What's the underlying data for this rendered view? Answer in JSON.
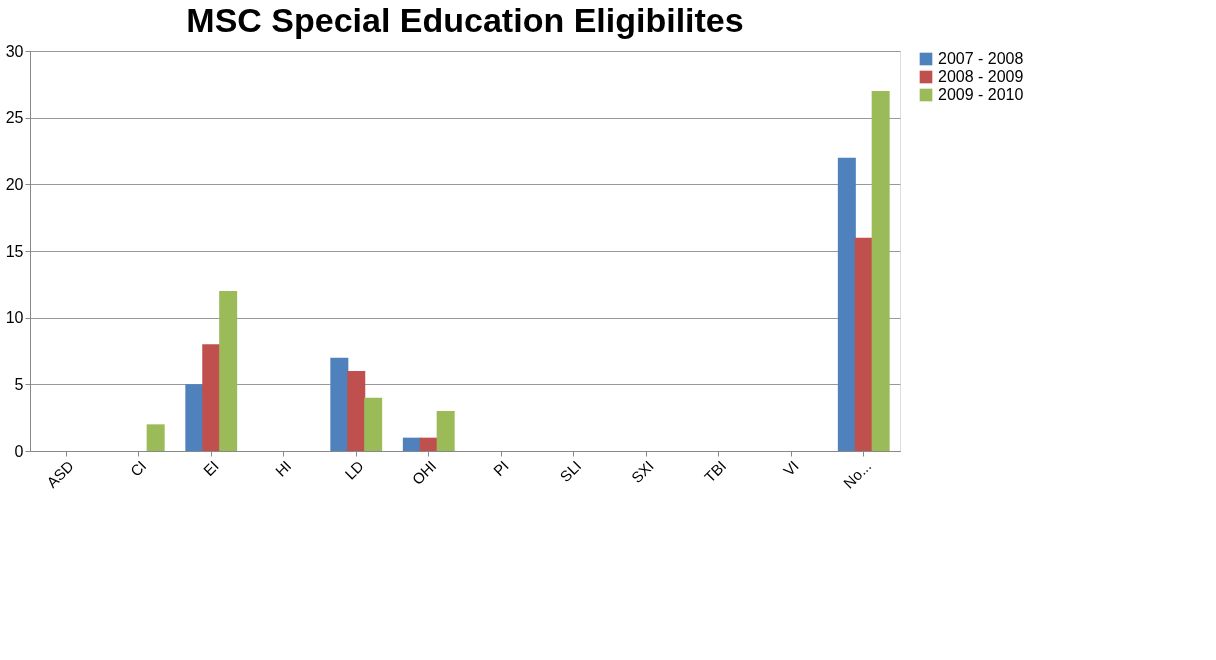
{
  "chart_data": {
    "type": "bar",
    "title": "MSC Special Education Eligibilites",
    "categories": [
      "ASD",
      "CI",
      "EI",
      "HI",
      "LD",
      "OHI",
      "PI",
      "SLI",
      "SXI",
      "TBI",
      "VI",
      "No..."
    ],
    "series": [
      {
        "name": "2007 - 2008",
        "color": "#4f81bd",
        "values": [
          0,
          0,
          5,
          0,
          7,
          1,
          0,
          0,
          0,
          0,
          0,
          22
        ]
      },
      {
        "name": "2008 - 2009",
        "color": "#c0504d",
        "values": [
          0,
          0,
          8,
          0,
          6,
          1,
          0,
          0,
          0,
          0,
          0,
          16
        ]
      },
      {
        "name": "2009 - 2010",
        "color": "#9bbb59",
        "values": [
          0,
          2,
          12,
          0,
          4,
          3,
          0,
          0,
          0,
          0,
          0,
          27
        ]
      }
    ],
    "ylim": [
      0,
      30
    ],
    "yticks": [
      0,
      5,
      10,
      15,
      20,
      25,
      30
    ],
    "grid": "y",
    "legend": "right"
  }
}
